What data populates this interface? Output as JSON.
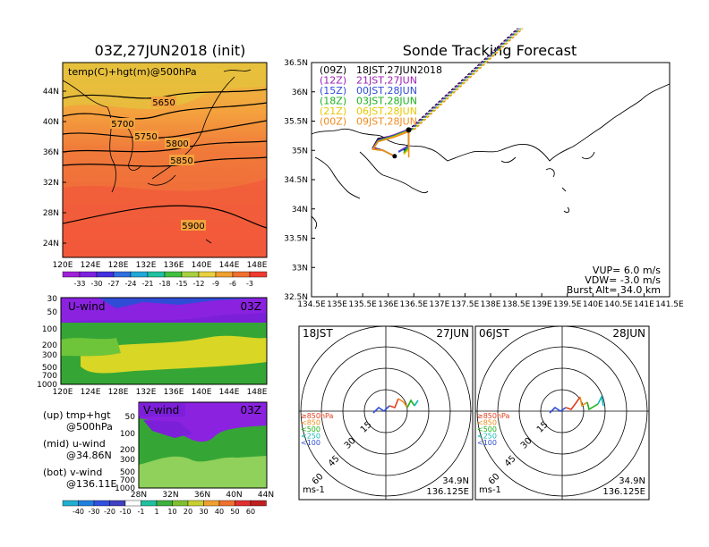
{
  "colors": {
    "temp_fill": "#f07a3a",
    "temp_warm": "#f25b3a",
    "temp_cool": "#f4a23e",
    "temp_hot": "#e7c23d",
    "uwind_low": "#7b1fd9",
    "uwind_mid": "#35a635",
    "uwind_yellow": "#d9d625",
    "vwind_green": "#35a635",
    "vwind_purple": "#8a22e0",
    "c09": "#000000",
    "c12": "#9c1fb5",
    "c15": "#2f4cd6",
    "c18": "#1cb21c",
    "c21": "#e8c800",
    "c00": "#f08c1e",
    "polar_blue": "#2f4cd6",
    "polar_red": "#e04020",
    "polar_green": "#1cb21c",
    "polar_cyan": "#10b8b8",
    "polar_orange": "#f08c1e"
  },
  "left": {
    "main_title": "03Z,27JUN2018 (init)",
    "map_label": "temp(C)+hgt(m)@500hPa",
    "contour_labels": [
      "5650",
      "5700",
      "5750",
      "5800",
      "5850",
      "5900"
    ],
    "lat_ticks": [
      "44N",
      "40N",
      "36N",
      "32N",
      "28N",
      "24N"
    ],
    "lon_ticks": [
      "120E",
      "124E",
      "128E",
      "132E",
      "136E",
      "140E",
      "144E",
      "148E"
    ],
    "temp_colorbar": [
      "-33",
      "-30",
      "-27",
      "-24",
      "-21",
      "-18",
      "-15",
      "-12",
      "-9",
      "-6",
      "-3"
    ],
    "uwind_label": "U-wind",
    "uwind_time": "03Z",
    "uwind_levels": [
      "30",
      "50",
      "100",
      "200",
      "300",
      "500",
      "700",
      "1000"
    ],
    "uwind_lon_ticks": [
      "120E",
      "124E",
      "128E",
      "132E",
      "136E",
      "140E",
      "144E",
      "148E"
    ],
    "vwind_label": "V-wind",
    "vwind_time": "03Z",
    "vwind_levels": [
      "50",
      "100",
      "200",
      "300",
      "500",
      "700",
      "1000"
    ],
    "vwind_lat_ticks": [
      "28N",
      "32N",
      "36N",
      "40N",
      "44N"
    ],
    "wind_colorbar": [
      "-40",
      "-30",
      "-20",
      "-10",
      "-1",
      "1",
      "10",
      "20",
      "30",
      "40",
      "50",
      "60"
    ],
    "legend_up": "(up) tmp+hgt",
    "legend_up2": "@500hPa",
    "legend_mid": "(mid) u-wind",
    "legend_mid2": "@34.86N",
    "legend_bot": "(bot) v-wind",
    "legend_bot2": "@136.11E"
  },
  "tracking": {
    "title": "Sonde Tracking Forecast",
    "runs": [
      {
        "run": "(09Z)",
        "label": "18JST,27JUN2018",
        "color": "#000000"
      },
      {
        "run": "(12Z)",
        "label": "21JST,27JUN",
        "color": "#9c1fb5"
      },
      {
        "run": "(15Z)",
        "label": "00JST,28JUN",
        "color": "#2f4cd6"
      },
      {
        "run": "(18Z)",
        "label": "03JST,28JUN",
        "color": "#1cb21c"
      },
      {
        "run": "(21Z)",
        "label": "06JST,28JUN",
        "color": "#e8c800"
      },
      {
        "run": "(00Z)",
        "label": "09JST,28JUN",
        "color": "#f08c1e"
      }
    ],
    "lat_ticks": [
      "36.5N",
      "36N",
      "35.5N",
      "35N",
      "34.5N",
      "34N",
      "33.5N",
      "33N",
      "32.5N"
    ],
    "lon_ticks": [
      "134.5E",
      "135E",
      "135.5E",
      "136E",
      "136.5E",
      "137E",
      "137.5E",
      "138E",
      "138.5E",
      "139E",
      "139.5E",
      "140E",
      "140.5E",
      "141E",
      "141.5E"
    ],
    "vup": "VUP= 6.0 m/s",
    "vdw": "VDW= -3.0 m/s",
    "burst": "Burst Alt= 34.0 km"
  },
  "chart_data": [
    {
      "type": "heatmap",
      "title": "03Z,27JUN2018 (init)",
      "subtitle": "temp(C)+hgt(m)@500hPa",
      "x_ticks": [
        "120E",
        "124E",
        "128E",
        "132E",
        "136E",
        "140E",
        "144E",
        "148E"
      ],
      "y_ticks": [
        "44N",
        "40N",
        "36N",
        "32N",
        "28N",
        "24N"
      ],
      "contour_levels": [
        5650,
        5700,
        5750,
        5800,
        5850,
        5900
      ],
      "colorbar": [
        -33,
        -30,
        -27,
        -24,
        -21,
        -18,
        -15,
        -12,
        -9,
        -6,
        -3
      ]
    },
    {
      "type": "line",
      "title": "Sonde Tracking Forecast",
      "x_unit": "deg E",
      "y_unit": "deg N",
      "xlim": [
        134.5,
        141.5
      ],
      "ylim": [
        32.5,
        36.5
      ],
      "burst_point": [
        136.4,
        35.35
      ],
      "launch_point": [
        136.125,
        34.9
      ],
      "series": [
        {
          "name": "(09Z) 18JST,27JUN2018",
          "x": [
            136.125,
            135.9,
            135.7,
            135.8,
            136.1,
            136.4,
            136.4,
            136.3
          ],
          "y": [
            34.9,
            35.0,
            35.05,
            35.2,
            35.25,
            35.35,
            35.1,
            35.0
          ]
        },
        {
          "name": "(12Z) 21JST,27JUN",
          "x": [
            136.125,
            135.9,
            135.7,
            135.8,
            136.1,
            136.4,
            136.4,
            136.2
          ],
          "y": [
            34.9,
            35.0,
            35.04,
            35.18,
            35.26,
            35.36,
            35.08,
            34.98
          ]
        },
        {
          "name": "(15Z) 00JST,28JUN",
          "x": [
            136.125,
            135.9,
            135.7,
            135.8,
            136.1,
            136.4,
            136.4,
            136.2
          ],
          "y": [
            34.9,
            35.0,
            35.03,
            35.17,
            35.25,
            35.35,
            35.07,
            34.97
          ]
        },
        {
          "name": "(18Z) 03JST,28JUN",
          "x": [
            136.125,
            135.9,
            135.7,
            135.8,
            136.1,
            136.4,
            136.4,
            136.3
          ],
          "y": [
            34.9,
            35.0,
            35.02,
            35.16,
            35.24,
            35.34,
            35.06,
            34.96
          ]
        },
        {
          "name": "(21Z) 06JST,28JUN",
          "x": [
            136.125,
            135.9,
            135.7,
            135.8,
            136.1,
            136.4,
            136.4,
            136.3
          ],
          "y": [
            34.9,
            35.0,
            35.02,
            35.15,
            35.23,
            35.33,
            35.02,
            34.93
          ]
        },
        {
          "name": "(00Z) 09JST,28JUN",
          "x": [
            136.125,
            135.9,
            135.7,
            135.8,
            136.1,
            136.4,
            136.4,
            136.4
          ],
          "y": [
            34.9,
            35.0,
            35.02,
            35.15,
            35.22,
            35.32,
            34.98,
            34.88
          ]
        }
      ]
    },
    {
      "type": "line",
      "title": "18JST 27JUN",
      "rings_unit": "ms-1",
      "ring_labels": [
        "15",
        "30",
        "45",
        "60"
      ],
      "legend": [
        "≥850hPa",
        "<850",
        "<500",
        "<250",
        "<100"
      ],
      "location": "34.9N 136.125E"
    },
    {
      "type": "line",
      "title": "06JST 28JUN",
      "rings_unit": "ms-1",
      "ring_labels": [
        "15",
        "30",
        "45",
        "60"
      ],
      "legend": [
        "≥850hPa",
        "<850",
        "<500",
        "<250",
        "<100"
      ],
      "location": "34.9N 136.125E"
    }
  ],
  "polar": [
    {
      "left": "18JST",
      "right": "27JUN",
      "lat": "34.9N",
      "lon": "136.125E",
      "unit": "ms-1",
      "rings": [
        "15",
        "30",
        "45",
        "60"
      ],
      "legend": [
        "≥850hPa",
        "<850",
        "<500",
        "<250",
        "<100"
      ]
    },
    {
      "left": "06JST",
      "right": "28JUN",
      "lat": "34.9N",
      "lon": "136.125E",
      "unit": "ms-1",
      "rings": [
        "15",
        "30",
        "45",
        "60"
      ],
      "legend": [
        "≥850hPa",
        "<850",
        "<500",
        "<250",
        "<100"
      ]
    }
  ]
}
